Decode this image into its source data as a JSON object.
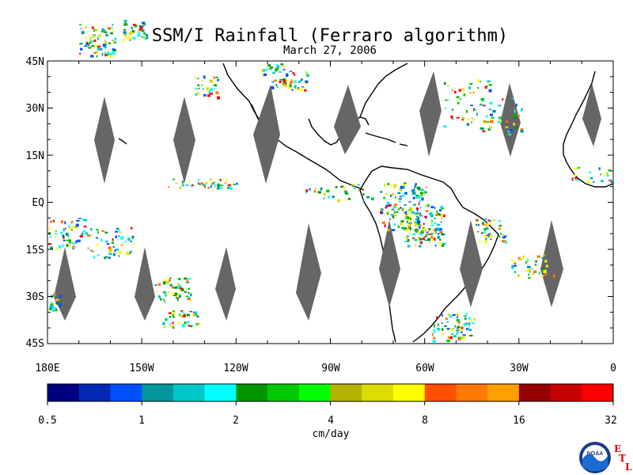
{
  "title": "SSM/I Rainfall (Ferraro algorithm)",
  "subtitle": "March 27, 2006",
  "lat_labels": [
    "45N",
    "30N",
    "15N",
    "EQ",
    "15S",
    "30S",
    "45S"
  ],
  "lon_labels": [
    "180E",
    "150W",
    "120W",
    "90W",
    "60W",
    "30W",
    "0"
  ],
  "colorbar": {
    "colors": [
      "#000080",
      "#0028b4",
      "#0050ff",
      "#00969b",
      "#00c8c8",
      "#00ffff",
      "#009600",
      "#00c800",
      "#00ff00",
      "#b4b400",
      "#dcdc00",
      "#ffff00",
      "#ff5000",
      "#ff7800",
      "#ffa000",
      "#960000",
      "#c80000",
      "#ff0000"
    ],
    "ticks": [
      "0.5",
      "1",
      "2",
      "4",
      "8",
      "16",
      "32"
    ],
    "units": "cm/day"
  },
  "logos": {
    "noaa_text": "NOAA",
    "etl_letters": [
      "E",
      "T",
      "L"
    ]
  }
}
